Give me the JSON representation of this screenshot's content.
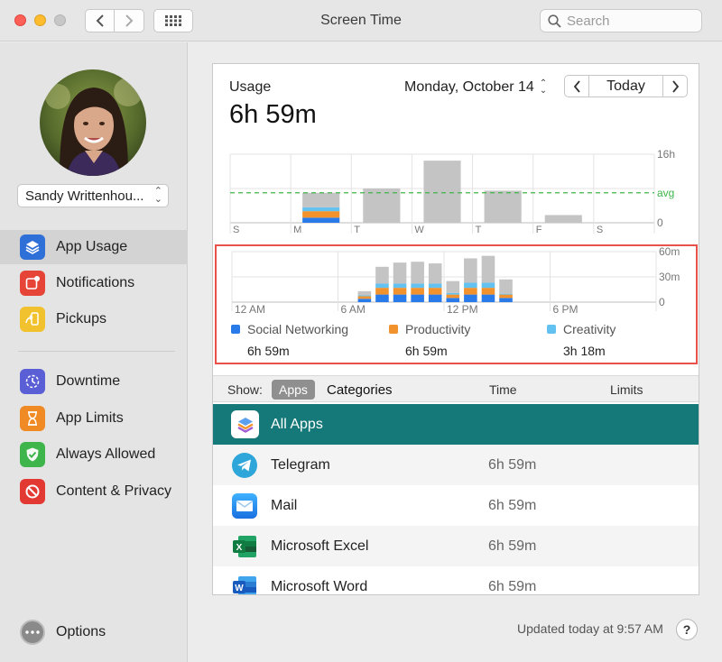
{
  "window": {
    "title": "Screen Time",
    "search_placeholder": "Search"
  },
  "sidebar": {
    "user_name": "Sandy Writtenhou...",
    "items": [
      {
        "label": "App Usage",
        "icon": "layers-icon",
        "color": "#2f6fd8",
        "active": true
      },
      {
        "label": "Notifications",
        "icon": "notification-icon",
        "color": "#e64436"
      },
      {
        "label": "Pickups",
        "icon": "pickup-icon",
        "color": "#f2c12e"
      },
      {
        "label": "Downtime",
        "icon": "downtime-icon",
        "color": "#5a5fd6"
      },
      {
        "label": "App Limits",
        "icon": "hourglass-icon",
        "color": "#f08a24"
      },
      {
        "label": "Always Allowed",
        "icon": "checkmark-badge-icon",
        "color": "#3db54a"
      },
      {
        "label": "Content & Privacy",
        "icon": "restriction-icon",
        "color": "#e23a33"
      }
    ],
    "options_label": "Options"
  },
  "usage": {
    "label": "Usage",
    "total": "6h 59m",
    "date": "Monday, October 14",
    "prev_label": "<",
    "today_label": "Today",
    "next_label": ">"
  },
  "chart_data": [
    {
      "type": "bar",
      "days": [
        "S",
        "M",
        "T",
        "W",
        "T",
        "F",
        "S"
      ],
      "ytick_labels": [
        "16h",
        "avg",
        "0"
      ],
      "ylim_hours": [
        0,
        16
      ],
      "avg_hours": 7,
      "values_hours": [
        0,
        7,
        8,
        14.5,
        7.5,
        1.8,
        0
      ],
      "selected_index": 1,
      "selected_breakdown_hours": {
        "social": 1.2,
        "productivity": 1.5,
        "creativity": 0.9,
        "other": 3.4
      }
    },
    {
      "type": "bar",
      "x_labels": [
        "12 AM",
        "6 AM",
        "12 PM",
        "6 PM"
      ],
      "ytick_labels": [
        "60m",
        "30m",
        "0"
      ],
      "ylim_minutes": [
        0,
        60
      ],
      "hours": [
        7,
        8,
        9,
        10,
        11,
        12,
        13,
        14,
        15
      ],
      "series": [
        {
          "name": "Social Networking",
          "color": "#2a7bea",
          "minutes": [
            4,
            9,
            9,
            9,
            9,
            5,
            9,
            9,
            5
          ]
        },
        {
          "name": "Productivity",
          "color": "#f2922c",
          "minutes": [
            3,
            8,
            8,
            8,
            8,
            4,
            8,
            8,
            4
          ]
        },
        {
          "name": "Creativity",
          "color": "#64c2f1",
          "minutes": [
            1,
            5,
            5,
            5,
            5,
            2,
            6,
            6,
            1
          ]
        },
        {
          "name": "Other",
          "color": "#c4c4c4",
          "minutes": [
            5,
            20,
            25,
            26,
            24,
            14,
            29,
            32,
            17
          ]
        }
      ]
    }
  ],
  "legend": [
    {
      "name": "Social Networking",
      "time": "6h 59m",
      "color": "#2a7bea"
    },
    {
      "name": "Productivity",
      "time": "6h 59m",
      "color": "#f2922c"
    },
    {
      "name": "Creativity",
      "time": "3h 18m",
      "color": "#64c2f1"
    }
  ],
  "table": {
    "show_label": "Show:",
    "segments": [
      "Apps",
      "Categories"
    ],
    "columns": [
      "Time",
      "Limits"
    ],
    "rows": [
      {
        "name": "All Apps",
        "time": "",
        "icon": "all-apps-icon",
        "selected": true
      },
      {
        "name": "Telegram",
        "time": "6h 59m",
        "icon": "telegram-icon"
      },
      {
        "name": "Mail",
        "time": "6h 59m",
        "icon": "mail-icon"
      },
      {
        "name": "Microsoft Excel",
        "time": "6h 59m",
        "icon": "excel-icon"
      },
      {
        "name": "Microsoft Word",
        "time": "6h 59m",
        "icon": "word-icon"
      }
    ]
  },
  "footer": {
    "updated": "Updated today at 9:57 AM",
    "help": "?"
  }
}
